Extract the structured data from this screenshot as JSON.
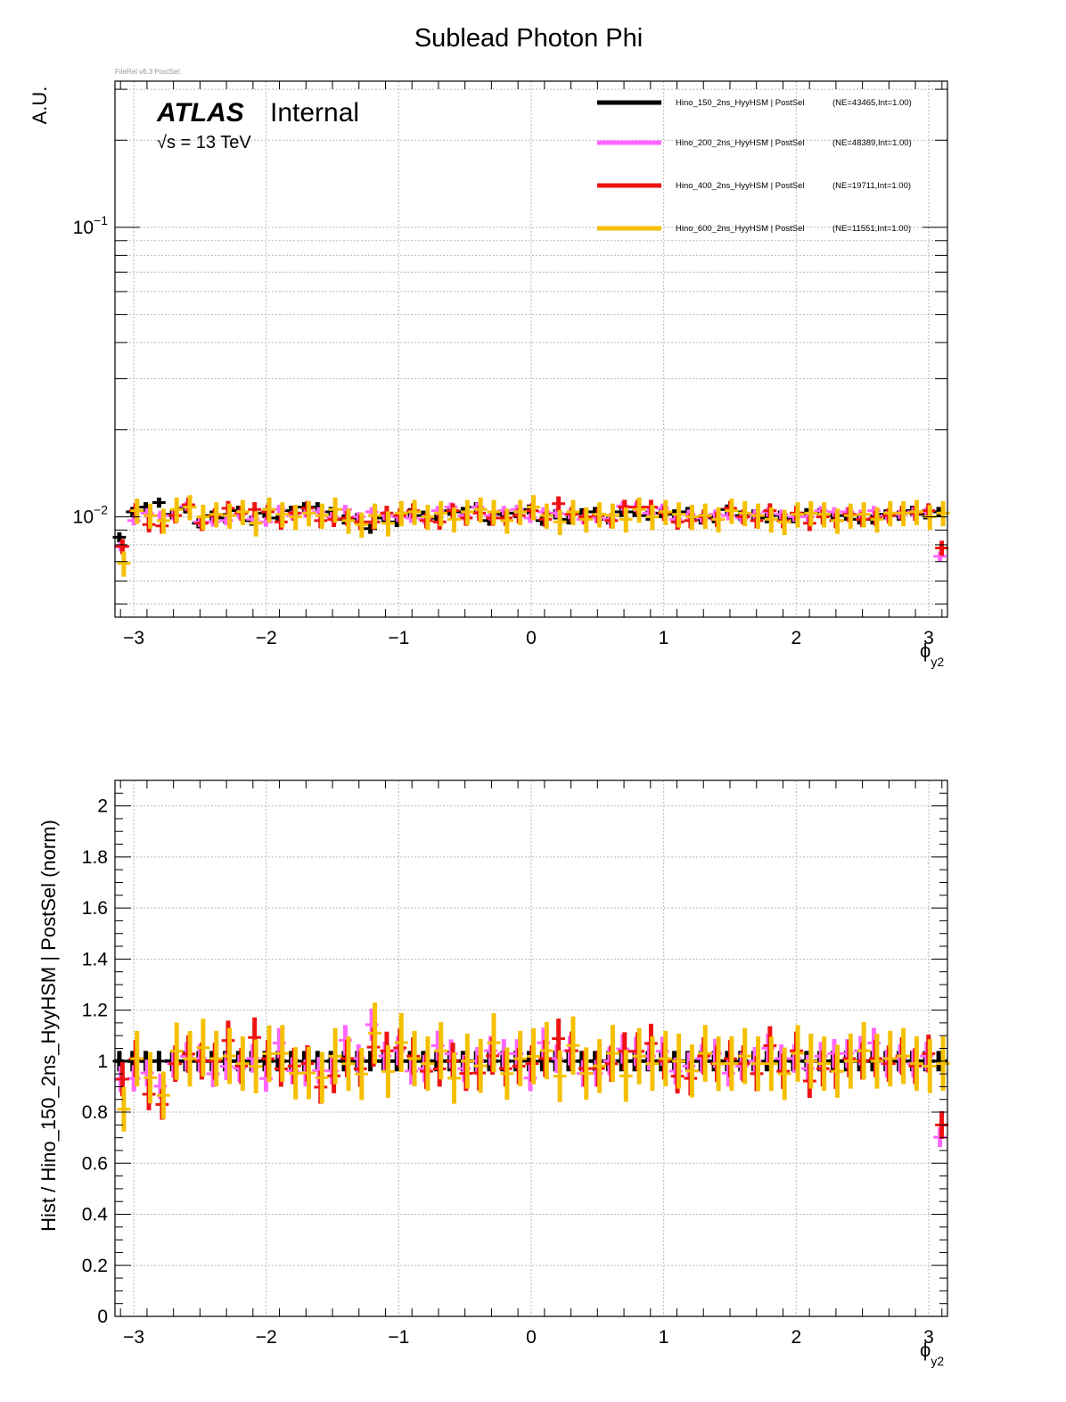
{
  "title": "Sublead Photon Phi",
  "version_tag": "FileRel v6.3 PostSel:",
  "atlas": {
    "brand": "ATLAS",
    "status": "Internal",
    "energy": "√s = 13 TeV"
  },
  "colors": {
    "hino150": "#000000",
    "hino200": "#ff66ff",
    "hino400": "#ee1111",
    "hino600": "#f5c000",
    "grid": "#b8b8b8"
  },
  "chart_data": [
    {
      "type": "scatter",
      "subtype": "histogram-errorbars",
      "title": "Sublead Photon Phi",
      "xlabel": "ϕ",
      "xlabel_sub": "y2",
      "ylabel": "A.U.",
      "log_y": true,
      "xlim": [
        -3.1416,
        3.1416
      ],
      "ylim": [
        0.0045,
        0.32
      ],
      "x_ticks": [
        "−3",
        "−2",
        "−1",
        "0",
        "1",
        "2",
        "3"
      ],
      "y_ticks": [
        {
          "base": "10",
          "exp": "−1"
        },
        {
          "base": "10",
          "exp": "−2"
        }
      ],
      "grid": true,
      "legend_position": "top-right",
      "n_bins": 63,
      "series": [
        {
          "name": "Hino_150_2ns_HyyHSM | PostSel",
          "stats": "(NE=43465,Int=1.00)",
          "color": "#000000",
          "values": [
            0.0085,
            0.0104,
            0.0108,
            0.0112,
            0.0102,
            0.0107,
            0.0095,
            0.0101,
            0.0099,
            0.0105,
            0.0097,
            0.0103,
            0.0099,
            0.0105,
            0.0108,
            0.0108,
            0.0104,
            0.0098,
            0.0099,
            0.0091,
            0.0099,
            0.0096,
            0.0103,
            0.0101,
            0.0099,
            0.0105,
            0.0104,
            0.0108,
            0.0097,
            0.0102,
            0.0103,
            0.0106,
            0.0097,
            0.0102,
            0.0098,
            0.0103,
            0.0104,
            0.0098,
            0.0104,
            0.0104,
            0.0101,
            0.0103,
            0.0102,
            0.0104,
            0.0098,
            0.0099,
            0.0106,
            0.0101,
            0.0102,
            0.0099,
            0.0101,
            0.0099,
            0.0103,
            0.0103,
            0.0101,
            0.0101,
            0.0098,
            0.0098,
            0.0102,
            0.0101,
            0.0105,
            0.0102,
            0.0104
          ]
        },
        {
          "name": "Hino_200_2ns_HyyHSM | PostSel",
          "stats": "(NE=48389,Int=1.00)",
          "color": "#ff66ff",
          "values": [
            0.0079,
            0.0097,
            0.0103,
            0.0101,
            0.0101,
            0.0109,
            0.0096,
            0.0096,
            0.0097,
            0.0102,
            0.0098,
            0.0096,
            0.0106,
            0.0101,
            0.0103,
            0.0104,
            0.01,
            0.0106,
            0.01,
            0.0104,
            0.0101,
            0.01,
            0.0099,
            0.0098,
            0.0105,
            0.0108,
            0.0101,
            0.0108,
            0.0101,
            0.0105,
            0.0106,
            0.0099,
            0.0104,
            0.0103,
            0.0102,
            0.0098,
            0.0099,
            0.0098,
            0.0109,
            0.0108,
            0.0103,
            0.0107,
            0.0098,
            0.0102,
            0.0099,
            0.0102,
            0.0101,
            0.0099,
            0.0102,
            0.0104,
            0.0102,
            0.01,
            0.01,
            0.0105,
            0.0104,
            0.0104,
            0.0102,
            0.0105,
            0.0101,
            0.0102,
            0.0104,
            0.0104,
            0.0073
          ]
        },
        {
          "name": "Hino_400_2ns_HyyHSM | PostSel",
          "stats": "(NE=19711,Int=1.00)",
          "color": "#ee1111",
          "values": [
            0.0079,
            0.0105,
            0.0094,
            0.0093,
            0.0101,
            0.011,
            0.0095,
            0.0101,
            0.0107,
            0.0103,
            0.0106,
            0.0104,
            0.0096,
            0.0103,
            0.0107,
            0.0097,
            0.0098,
            0.0099,
            0.0096,
            0.0096,
            0.0103,
            0.0101,
            0.0105,
            0.0097,
            0.0096,
            0.0105,
            0.0099,
            0.0103,
            0.0099,
            0.0099,
            0.0101,
            0.0105,
            0.0098,
            0.0111,
            0.0102,
            0.01,
            0.0101,
            0.0097,
            0.0108,
            0.0108,
            0.0108,
            0.0103,
            0.0096,
            0.0097,
            0.01,
            0.0098,
            0.0107,
            0.01,
            0.0097,
            0.0105,
            0.0097,
            0.0103,
            0.0095,
            0.01,
            0.0097,
            0.0102,
            0.0098,
            0.0099,
            0.0101,
            0.0103,
            0.0103,
            0.0105,
            0.0078
          ]
        },
        {
          "name": "Hino_600_2ns_HyyHSM | PostSel",
          "stats": "(NE=11551,Int=1.00)",
          "color": "#f5c000",
          "values": [
            0.0069,
            0.0105,
            0.0101,
            0.0097,
            0.0106,
            0.0108,
            0.01,
            0.0102,
            0.0101,
            0.0104,
            0.0095,
            0.0106,
            0.0102,
            0.01,
            0.0103,
            0.0101,
            0.0106,
            0.0097,
            0.0094,
            0.0101,
            0.0095,
            0.0103,
            0.0104,
            0.01,
            0.0103,
            0.0098,
            0.0104,
            0.0106,
            0.0104,
            0.0097,
            0.0104,
            0.0108,
            0.0101,
            0.0096,
            0.0104,
            0.0098,
            0.0102,
            0.0101,
            0.0098,
            0.0106,
            0.01,
            0.0104,
            0.0102,
            0.01,
            0.0101,
            0.0098,
            0.0105,
            0.0103,
            0.0101,
            0.0098,
            0.0096,
            0.0102,
            0.0103,
            0.0102,
            0.0097,
            0.0101,
            0.0102,
            0.0098,
            0.0103,
            0.0103,
            0.0104,
            0.01,
            0.0103
          ]
        }
      ]
    },
    {
      "type": "scatter",
      "subtype": "ratio-errorbars",
      "xlabel": "ϕ",
      "xlabel_sub": "y2",
      "ylabel": "Hist / Hino_150_2ns_HyyHSM | PostSel   (norm)",
      "xlim": [
        -3.1416,
        3.1416
      ],
      "ylim": [
        0,
        2.1
      ],
      "x_ticks": [
        "−3",
        "−2",
        "−1",
        "0",
        "1",
        "2",
        "3"
      ],
      "y_ticks": [
        "0",
        "0.2",
        "0.4",
        "0.6",
        "0.8",
        "1",
        "1.2",
        "1.4",
        "1.6",
        "1.8",
        "2"
      ],
      "grid": true,
      "reference_line": 1,
      "series": [
        {
          "name": "Hino_150_2ns_HyyHSM | PostSel",
          "color": "#000000",
          "values_from": "ratio_to_reference"
        },
        {
          "name": "Hino_200_2ns_HyyHSM | PostSel",
          "color": "#ff66ff",
          "values_from": "ratio_to_reference"
        },
        {
          "name": "Hino_400_2ns_HyyHSM | PostSel",
          "color": "#ee1111",
          "values_from": "ratio_to_reference"
        },
        {
          "name": "Hino_600_2ns_HyyHSM | PostSel",
          "color": "#f5c000",
          "values_from": "ratio_to_reference"
        }
      ]
    }
  ]
}
